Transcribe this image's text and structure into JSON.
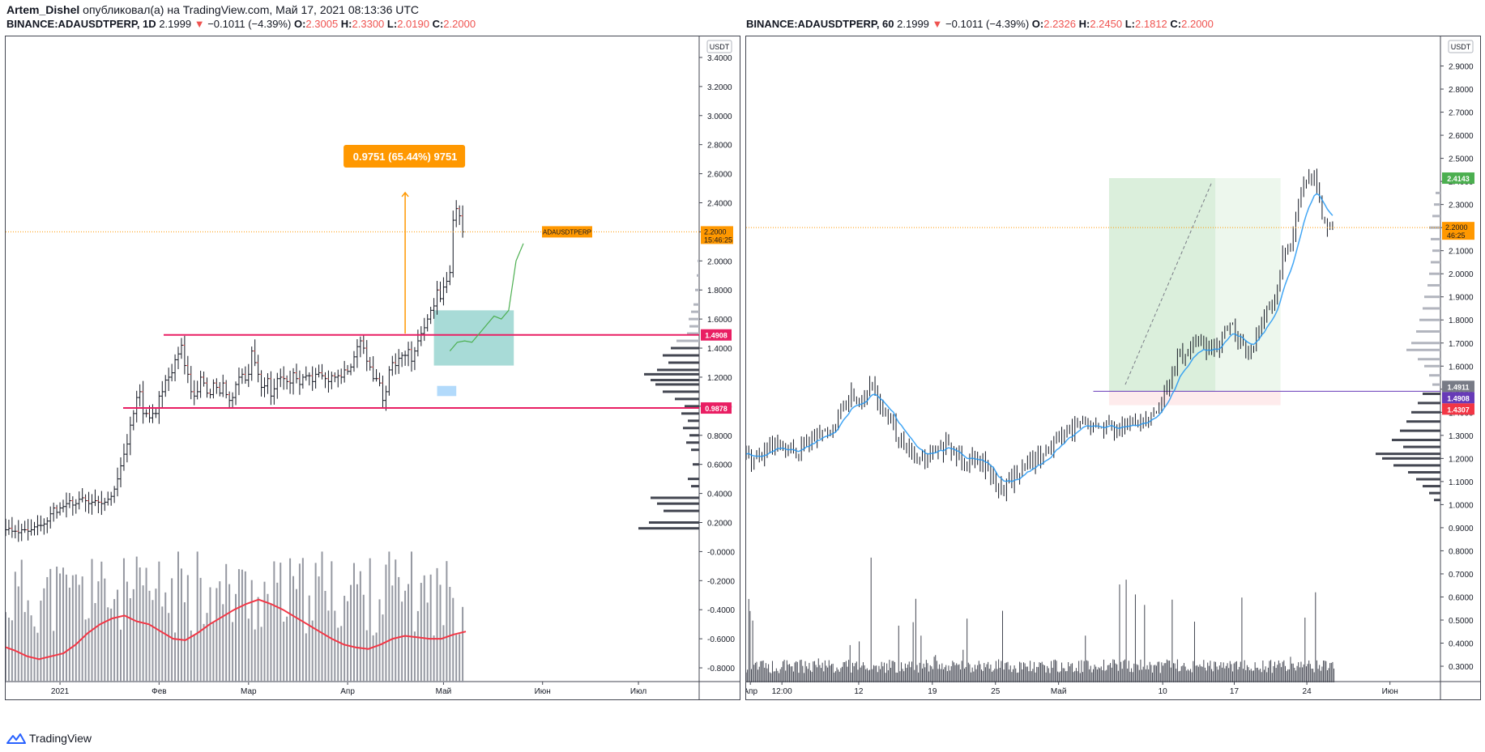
{
  "header": {
    "author": "Artem_Dishel",
    "published_text": " опубликовал(а) на TradingView.com, Май 17, 2021 08:13:36 UTC"
  },
  "left": {
    "symbol": "BINANCE:ADAUSDTPERP, 1D",
    "last": "2.1999",
    "change": "−0.1011 (−4.39%)",
    "o": "2.3005",
    "h": "2.3300",
    "l": "2.0190",
    "c": "2.2000"
  },
  "right": {
    "symbol": "BINANCE:ADAUSDTPERP, 60",
    "last": "2.1999",
    "change": "−0.1011 (−4.39%)",
    "o": "2.2326",
    "h": "2.2450",
    "l": "2.1812",
    "c": "2.2000"
  },
  "footer": {
    "brand": "TradingView"
  },
  "colors": {
    "up": "#131722",
    "down": "#131722",
    "pink": "#e91e63",
    "orange": "#ff9800",
    "teal": "#26a69a",
    "green": "#4caf50",
    "blue": "#2196f3",
    "red_ma": "#f23645",
    "purple": "#673ab7"
  },
  "chart_data": [
    {
      "type": "candlestick",
      "title": "BINANCE:ADAUSDTPERP, 1D",
      "currency_label": "USDT",
      "ylim": [
        -0.9,
        3.5
      ],
      "y_ticks": [
        "3.4000",
        "3.2000",
        "3.0000",
        "2.8000",
        "2.6000",
        "2.4000",
        "2.2000",
        "2.0000",
        "1.8000",
        "1.6000",
        "1.4000",
        "1.2000",
        "1.0000",
        "0.8000",
        "0.6000",
        "0.4000",
        "0.2000",
        "-0.0000",
        "-0.2000",
        "-0.4000",
        "-0.6000",
        "-0.8000"
      ],
      "y_tick_values": [
        3.4,
        3.2,
        3.0,
        2.8,
        2.6,
        2.4,
        2.2,
        2.0,
        1.8,
        1.6,
        1.4,
        1.2,
        1.0,
        0.8,
        0.6,
        0.4,
        0.2,
        0.0,
        -0.2,
        -0.4,
        -0.6,
        -0.8
      ],
      "x_ticks": [
        "2021",
        "Фев",
        "Мар",
        "Апр",
        "Май",
        "Июн",
        "Июл"
      ],
      "x_tick_days": [
        0,
        31,
        59,
        90,
        120,
        151,
        181
      ],
      "x_range_days": [
        -17,
        200
      ],
      "close_series_daily_from_dec14": [
        0.15,
        0.15,
        0.16,
        0.14,
        0.14,
        0.13,
        0.15,
        0.15,
        0.14,
        0.15,
        0.17,
        0.18,
        0.18,
        0.19,
        0.21,
        0.26,
        0.3,
        0.27,
        0.3,
        0.31,
        0.33,
        0.35,
        0.32,
        0.33,
        0.36,
        0.37,
        0.35,
        0.33,
        0.34,
        0.35,
        0.34,
        0.33,
        0.34,
        0.36,
        0.38,
        0.43,
        0.5,
        0.59,
        0.67,
        0.74,
        0.87,
        0.95,
        1.06,
        1.1,
        0.95,
        0.95,
        0.92,
        0.95,
        0.95,
        1.07,
        1.1,
        1.18,
        1.2,
        1.23,
        1.32,
        1.36,
        1.42,
        1.28,
        1.22,
        1.1,
        1.07,
        1.1,
        1.2,
        1.16,
        1.09,
        1.08,
        1.16,
        1.13,
        1.09,
        1.16,
        1.08,
        1.04,
        1.06,
        1.15,
        1.2,
        1.22,
        1.18,
        1.22,
        1.38,
        1.3,
        1.22,
        1.13,
        1.14,
        1.19,
        1.07,
        1.12,
        1.19,
        1.2,
        1.19,
        1.17,
        1.16,
        1.23,
        1.19,
        1.15,
        1.2,
        1.21,
        1.21,
        1.17,
        1.22,
        1.23,
        1.21,
        1.19,
        1.17,
        1.21,
        1.2,
        1.21,
        1.2,
        1.25,
        1.24,
        1.27,
        1.34,
        1.41,
        1.45,
        1.4,
        1.31,
        1.27,
        1.19,
        1.19,
        1.16,
        1.04,
        1.1,
        1.25,
        1.3,
        1.28,
        1.33,
        1.35,
        1.35,
        1.39,
        1.31,
        1.38,
        1.45,
        1.5,
        1.54,
        1.6,
        1.66,
        1.69,
        1.8,
        1.74,
        1.82,
        1.86,
        1.92,
        2.28,
        2.36,
        2.31,
        2.2
      ],
      "volume_ma_line_y": [
        -0.65,
        -0.68,
        -0.72,
        -0.74,
        -0.72,
        -0.7,
        -0.64,
        -0.56,
        -0.5,
        -0.46,
        -0.44,
        -0.48,
        -0.5,
        -0.55,
        -0.6,
        -0.61,
        -0.56,
        -0.5,
        -0.45,
        -0.4,
        -0.36,
        -0.33,
        -0.36,
        -0.4,
        -0.45,
        -0.5,
        -0.55,
        -0.6,
        -0.64,
        -0.66,
        -0.67,
        -0.64,
        -0.6,
        -0.58,
        -0.59,
        -0.6,
        -0.6,
        -0.57,
        -0.55
      ],
      "horizontal_levels": [
        {
          "price": 1.4908,
          "label": "1.4908",
          "color": "#e91e63"
        },
        {
          "price": 0.9878,
          "label": "0.9878",
          "color": "#e91e63"
        }
      ],
      "last_price": {
        "label": "2.2000",
        "countdown": "15:46:25",
        "symbol_tag": "ADAUSDTPERP",
        "price": 2.2
      },
      "measure_label": "0.9751 (65.44%) 9751",
      "measure_arrow": {
        "from_price": 1.5,
        "to_price": 2.47,
        "day": 108
      },
      "teal_box": {
        "price_low": 1.28,
        "price_high": 1.66,
        "day_start": 117,
        "day_end": 142
      },
      "blue_box": {
        "price_low": 1.07,
        "price_high": 1.14,
        "day_start": 118,
        "day_end": 124
      },
      "projection_path_prices": [
        1.38,
        1.44,
        1.45,
        1.44,
        1.5,
        1.56,
        1.62,
        1.6,
        1.66,
        2.0,
        2.12
      ],
      "volume_profile": [
        {
          "price": 2.0,
          "w": 2
        },
        {
          "price": 1.9,
          "w": 3
        },
        {
          "price": 1.8,
          "w": 5
        },
        {
          "price": 1.7,
          "w": 7
        },
        {
          "price": 1.65,
          "w": 10
        },
        {
          "price": 1.6,
          "w": 13
        },
        {
          "price": 1.55,
          "w": 12
        },
        {
          "price": 1.5,
          "w": 15
        },
        {
          "price": 1.45,
          "w": 28
        },
        {
          "price": 1.4,
          "w": 35
        },
        {
          "price": 1.35,
          "w": 45
        },
        {
          "price": 1.3,
          "w": 38
        },
        {
          "price": 1.25,
          "w": 52
        },
        {
          "price": 1.22,
          "w": 68
        },
        {
          "price": 1.18,
          "w": 60
        },
        {
          "price": 1.15,
          "w": 54
        },
        {
          "price": 1.1,
          "w": 45
        },
        {
          "price": 1.05,
          "w": 30
        },
        {
          "price": 1.0,
          "w": 18
        },
        {
          "price": 0.95,
          "w": 22
        },
        {
          "price": 0.9,
          "w": 14
        },
        {
          "price": 0.85,
          "w": 20
        },
        {
          "price": 0.8,
          "w": 12
        },
        {
          "price": 0.75,
          "w": 16
        },
        {
          "price": 0.7,
          "w": 10
        },
        {
          "price": 0.6,
          "w": 8
        },
        {
          "price": 0.5,
          "w": 14
        },
        {
          "price": 0.45,
          "w": 10
        },
        {
          "price": 0.37,
          "w": 60
        },
        {
          "price": 0.33,
          "w": 52
        },
        {
          "price": 0.28,
          "w": 44
        },
        {
          "price": 0.2,
          "w": 62
        },
        {
          "price": 0.16,
          "w": 75
        }
      ]
    },
    {
      "type": "candlestick",
      "title": "BINANCE:ADAUSDTPERP, 60",
      "currency_label": "USDT",
      "ylim": [
        0.23,
        3.0
      ],
      "y_ticks": [
        "2.9000",
        "2.8000",
        "2.7000",
        "2.6000",
        "2.5000",
        "2.4000",
        "2.3000",
        "2.2000",
        "2.1000",
        "2.0000",
        "1.9000",
        "1.8000",
        "1.7000",
        "1.6000",
        "1.5000",
        "1.4000",
        "1.3000",
        "1.2000",
        "1.1000",
        "1.0000",
        "0.9000",
        "0.8000",
        "0.7000",
        "0.6000",
        "0.5000",
        "0.4000",
        "0.3000"
      ],
      "y_tick_values": [
        2.9,
        2.8,
        2.7,
        2.6,
        2.5,
        2.4,
        2.3,
        2.2,
        2.1,
        2.0,
        1.9,
        1.8,
        1.7,
        1.6,
        1.5,
        1.4,
        1.3,
        1.2,
        1.1,
        1.0,
        0.9,
        0.8,
        0.7,
        0.6,
        0.5,
        0.4,
        0.3
      ],
      "x_ticks": [
        "Апр",
        "12:00",
        "12",
        "19",
        "25",
        "Май",
        "10",
        "17",
        "24",
        "Июн"
      ],
      "x_tick_days": [
        0.4,
        3.4,
        10.7,
        17.7,
        23.7,
        29.7,
        39.6,
        46.4,
        53.3,
        61.2
      ],
      "x_range_days": [
        0,
        66
      ],
      "close_series_by_day": [
        1.22,
        1.2,
        1.23,
        1.25,
        1.22,
        1.24,
        1.28,
        1.3,
        1.33,
        1.4,
        1.48,
        1.46,
        1.52,
        1.4,
        1.33,
        1.25,
        1.2,
        1.19,
        1.23,
        1.25,
        1.22,
        1.19,
        1.22,
        1.15,
        1.06,
        1.1,
        1.14,
        1.18,
        1.2,
        1.26,
        1.3,
        1.32,
        1.36,
        1.33,
        1.34,
        1.34,
        1.33,
        1.35,
        1.38,
        1.42,
        1.5,
        1.63,
        1.66,
        1.72,
        1.65,
        1.7,
        1.78,
        1.7,
        1.66,
        1.8,
        1.86,
        2.06,
        2.18,
        2.38,
        2.43,
        2.2
      ],
      "horizontal_levels": [
        {
          "price": 1.4911,
          "label": "1.4911",
          "color": "#787b86"
        },
        {
          "price": 1.4908,
          "label": "1.4908",
          "color": "#673ab7"
        },
        {
          "price": 1.4307,
          "label": "1.4307",
          "color": "#f23645"
        }
      ],
      "last_price": {
        "label": "2.2000",
        "countdown": "46:25",
        "price": 2.2
      },
      "target_label": {
        "label": "2.4143",
        "price": 2.4143
      },
      "long_position": {
        "entry": 1.4911,
        "target": 2.4143,
        "stop": 1.4307,
        "day_start": 34.5,
        "day_mid": 44.6,
        "day_end": 50.8
      },
      "volume_profile": [
        {
          "price": 2.35,
          "w": 6
        },
        {
          "price": 2.3,
          "w": 8
        },
        {
          "price": 2.25,
          "w": 10
        },
        {
          "price": 2.2,
          "w": 14
        },
        {
          "price": 2.15,
          "w": 12
        },
        {
          "price": 2.1,
          "w": 10
        },
        {
          "price": 2.05,
          "w": 12
        },
        {
          "price": 2.0,
          "w": 14
        },
        {
          "price": 1.95,
          "w": 16
        },
        {
          "price": 1.9,
          "w": 20
        },
        {
          "price": 1.85,
          "w": 22
        },
        {
          "price": 1.8,
          "w": 26
        },
        {
          "price": 1.75,
          "w": 30
        },
        {
          "price": 1.7,
          "w": 36
        },
        {
          "price": 1.67,
          "w": 42
        },
        {
          "price": 1.63,
          "w": 28
        },
        {
          "price": 1.6,
          "w": 20
        },
        {
          "price": 1.56,
          "w": 14
        },
        {
          "price": 1.52,
          "w": 10
        },
        {
          "price": 1.48,
          "w": 22
        },
        {
          "price": 1.44,
          "w": 28
        },
        {
          "price": 1.4,
          "w": 36
        },
        {
          "price": 1.36,
          "w": 42
        },
        {
          "price": 1.32,
          "w": 50
        },
        {
          "price": 1.28,
          "w": 60
        },
        {
          "price": 1.25,
          "w": 46
        },
        {
          "price": 1.22,
          "w": 80
        },
        {
          "price": 1.2,
          "w": 72
        },
        {
          "price": 1.17,
          "w": 58
        },
        {
          "price": 1.14,
          "w": 40
        },
        {
          "price": 1.11,
          "w": 30
        },
        {
          "price": 1.08,
          "w": 22
        },
        {
          "price": 1.05,
          "w": 14
        },
        {
          "price": 1.02,
          "w": 8
        }
      ]
    }
  ]
}
